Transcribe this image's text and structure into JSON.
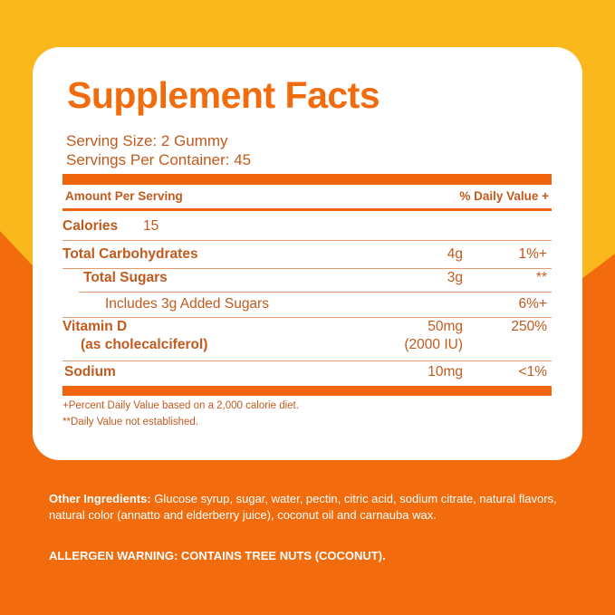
{
  "colors": {
    "yellow": "#fbb81c",
    "orange": "#f26b0d",
    "text": "#c25a1e"
  },
  "title": "Supplement Facts",
  "serving_size": "Serving Size: 2 Gummy",
  "servings_per_container": "Servings Per Container: 45",
  "header": {
    "amount": "Amount Per Serving",
    "dv": "% Daily Value +"
  },
  "calories": {
    "label": "Calories",
    "value": "15"
  },
  "rows": [
    {
      "label": "Total Carbohydrates",
      "amount": "4g",
      "dv": "1%+"
    },
    {
      "label": "Total Sugars",
      "amount": "3g",
      "dv": "**"
    },
    {
      "label": "Includes 3g Added Sugars",
      "amount": "",
      "dv": "6%+"
    },
    {
      "label": "Vitamin D",
      "sublabel": "(as cholecalciferol)",
      "amount": "50mg",
      "amount2": "(2000 IU)",
      "dv": "250%"
    },
    {
      "label": "Sodium",
      "amount": "10mg",
      "dv": "<1%"
    }
  ],
  "footnotes": [
    "+Percent Daily Value based on a 2,000 calorie diet.",
    "**Daily Value not established."
  ],
  "other_ingredients": {
    "label": "Other Ingredients:",
    "text": " Glucose syrup, sugar, water, pectin, citric acid, sodium citrate, natural flavors, natural color (annatto and elderberry juice), coconut oil and carnauba wax."
  },
  "allergen": "ALLERGEN WARNING: CONTAINS TREE NUTS (COCONUT)."
}
